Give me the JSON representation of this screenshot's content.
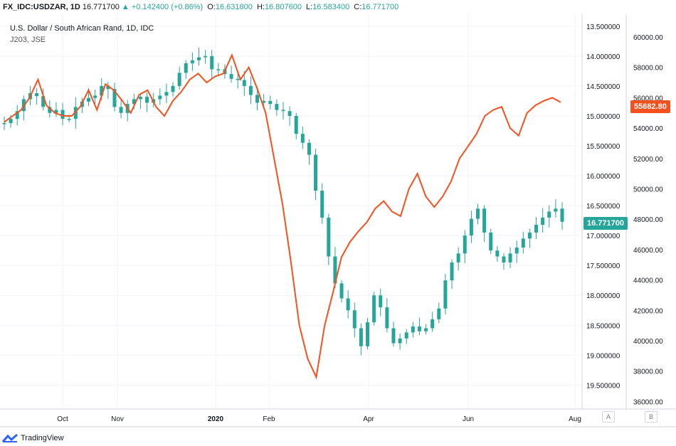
{
  "header": {
    "symbol": "FX_IDC:USDZAR, 1D",
    "last": "16.771700",
    "change": "+0.142400 (+0.86%)",
    "open_label": "O:",
    "open": "16.631800",
    "high_label": "H:",
    "high": "16.807600",
    "low_label": "L:",
    "low": "16.583400",
    "close_label": "C:",
    "close": "16.771700"
  },
  "title": "U.S. Dollar / South African Rand, 1D, IDC",
  "compare_symbol": "J203, JSE",
  "badges": {
    "usdzar": "16.771700",
    "j203": "55682.80"
  },
  "buttons": {
    "a": "A",
    "b": "B"
  },
  "footer": {
    "brand": "TradingView"
  },
  "colors": {
    "up": "#26a69a",
    "down": "#26a69a",
    "overlay": "#f4511e",
    "grid": "#f0f3fa"
  },
  "chart_data": {
    "type": "line",
    "x_ticks": [
      "Oct",
      "Nov",
      "2020",
      "Feb",
      "Apr",
      "Jun",
      "Aug"
    ],
    "left_axis": {
      "inverted": true,
      "range": [
        13.3,
        19.9
      ],
      "ticks": [
        "13.500000",
        "14.000000",
        "14.500000",
        "15.000000",
        "15.500000",
        "16.000000",
        "16.500000",
        "17.000000",
        "17.500000",
        "18.000000",
        "18.500000",
        "19.000000",
        "19.500000"
      ]
    },
    "right_axis": {
      "range": [
        35500,
        61500
      ],
      "ticks": [
        "60000.00",
        "58000.00",
        "56000.00",
        "54000.00",
        "52000.00",
        "50000.00",
        "48000.00",
        "46000.00",
        "44000.00",
        "42000.00",
        "40000.00",
        "38000.00",
        "36000.00"
      ]
    },
    "series": [
      {
        "name": "FX_IDC:USDZAR, 1D",
        "kind": "candlestick",
        "values": [
          15.12,
          15.05,
          14.92,
          14.72,
          14.62,
          14.67,
          14.85,
          14.95,
          14.9,
          15.05,
          15.05,
          14.85,
          14.76,
          14.7,
          14.66,
          14.5,
          14.55,
          14.85,
          14.95,
          14.8,
          14.72,
          14.68,
          14.78,
          14.72,
          14.66,
          14.6,
          14.5,
          14.28,
          14.12,
          14.07,
          14.02,
          14.0,
          14.22,
          14.22,
          14.3,
          14.38,
          14.4,
          14.5,
          14.65,
          14.78,
          14.75,
          14.8,
          14.9,
          14.92,
          15.0,
          15.3,
          15.45,
          15.65,
          16.25,
          16.7,
          17.35,
          17.8,
          18.05,
          18.25,
          18.55,
          18.85,
          18.45,
          18.0,
          18.2,
          18.55,
          18.8,
          18.72,
          18.62,
          18.52,
          18.6,
          18.55,
          18.4,
          18.22,
          17.75,
          17.45,
          17.3,
          17.0,
          16.72,
          16.55,
          16.95,
          17.25,
          17.35,
          17.45,
          17.3,
          17.2,
          17.05,
          16.95,
          16.82,
          16.7,
          16.6,
          16.55,
          16.77
        ]
      },
      {
        "name": "J203, JSE",
        "kind": "line",
        "values": [
          54400,
          54800,
          55200,
          56000,
          57200,
          55500,
          55000,
          54800,
          54800,
          55400,
          56500,
          55200,
          56900,
          56500,
          55800,
          55000,
          56200,
          56500,
          55400,
          54800,
          55800,
          56400,
          57200,
          57600,
          57000,
          57400,
          57600,
          58800,
          57200,
          58000,
          56600,
          55000,
          52000,
          49000,
          45200,
          41000,
          38800,
          37600,
          41000,
          43200,
          45500,
          46500,
          47200,
          47800,
          48700,
          49200,
          48500,
          48200,
          50000,
          51000,
          49500,
          48800,
          49500,
          50500,
          52000,
          52800,
          53600,
          54800,
          55200,
          55400,
          54000,
          53500,
          55000,
          55500,
          55800,
          56000,
          55700
        ]
      }
    ]
  }
}
